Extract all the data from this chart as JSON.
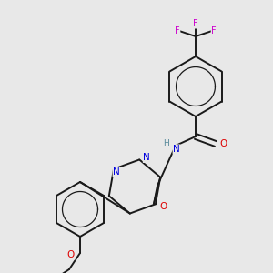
{
  "background_color": "#e8e8e8",
  "bond_color": "#1a1a1a",
  "atom_colors": {
    "N": "#0000dd",
    "O": "#dd0000",
    "F": "#cc00cc",
    "H": "#558899",
    "C": "#1a1a1a"
  },
  "bond_width": 1.4,
  "font_size": 7.5
}
